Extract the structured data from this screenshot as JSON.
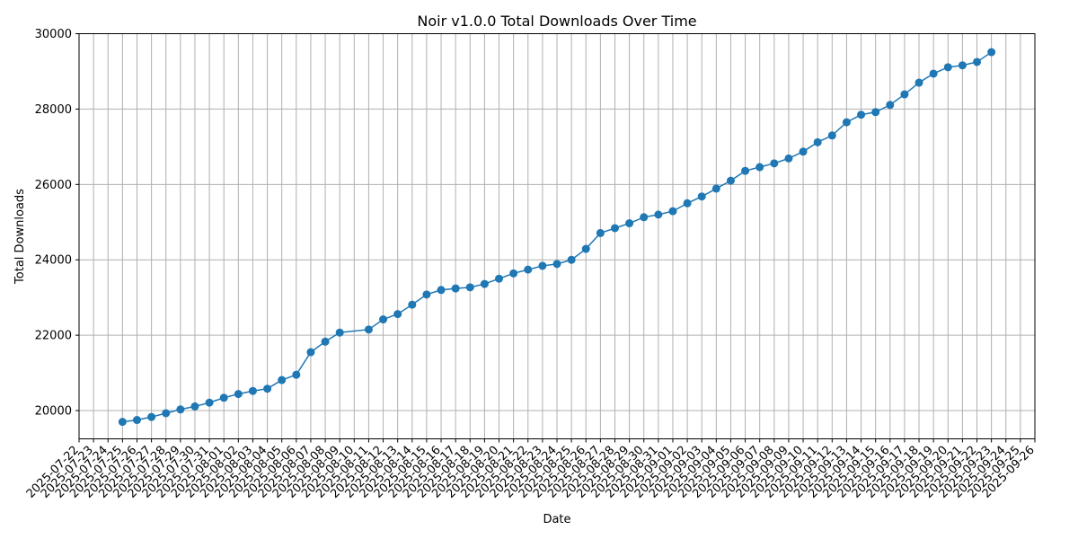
{
  "chart_data": {
    "type": "line",
    "title": "Noir v1.0.0 Total Downloads Over Time",
    "xlabel": "Date",
    "ylabel": "Total Downloads",
    "ylim": [
      19250,
      30000
    ],
    "yticks": [
      20000,
      22000,
      24000,
      26000,
      28000,
      30000
    ],
    "xlim": [
      "2025-07-22",
      "2025-09-26"
    ],
    "grid": true,
    "series": [
      {
        "color": "#1f77b4",
        "points": [
          [
            "2025-07-25",
            19700
          ],
          [
            "2025-07-26",
            19750
          ],
          [
            "2025-07-27",
            19830
          ],
          [
            "2025-07-28",
            19930
          ],
          [
            "2025-07-29",
            20030
          ],
          [
            "2025-07-30",
            20110
          ],
          [
            "2025-07-31",
            20210
          ],
          [
            "2025-08-01",
            20340
          ],
          [
            "2025-08-02",
            20440
          ],
          [
            "2025-08-03",
            20520
          ],
          [
            "2025-08-04",
            20580
          ],
          [
            "2025-08-05",
            20810
          ],
          [
            "2025-08-06",
            20950
          ],
          [
            "2025-08-07",
            21550
          ],
          [
            "2025-08-08",
            21830
          ],
          [
            "2025-08-09",
            22070
          ],
          [
            "2025-08-11",
            22150
          ],
          [
            "2025-08-12",
            22420
          ],
          [
            "2025-08-13",
            22560
          ],
          [
            "2025-08-14",
            22810
          ],
          [
            "2025-08-15",
            23080
          ],
          [
            "2025-08-16",
            23200
          ],
          [
            "2025-08-17",
            23240
          ],
          [
            "2025-08-18",
            23270
          ],
          [
            "2025-08-19",
            23360
          ],
          [
            "2025-08-20",
            23500
          ],
          [
            "2025-08-21",
            23640
          ],
          [
            "2025-08-22",
            23740
          ],
          [
            "2025-08-23",
            23840
          ],
          [
            "2025-08-24",
            23890
          ],
          [
            "2025-08-25",
            24000
          ],
          [
            "2025-08-26",
            24290
          ],
          [
            "2025-08-27",
            24710
          ],
          [
            "2025-08-28",
            24840
          ],
          [
            "2025-08-29",
            24970
          ],
          [
            "2025-08-30",
            25130
          ],
          [
            "2025-08-31",
            25200
          ],
          [
            "2025-09-01",
            25290
          ],
          [
            "2025-09-02",
            25500
          ],
          [
            "2025-09-03",
            25680
          ],
          [
            "2025-09-04",
            25890
          ],
          [
            "2025-09-05",
            26100
          ],
          [
            "2025-09-06",
            26360
          ],
          [
            "2025-09-07",
            26460
          ],
          [
            "2025-09-08",
            26560
          ],
          [
            "2025-09-09",
            26690
          ],
          [
            "2025-09-10",
            26870
          ],
          [
            "2025-09-11",
            27120
          ],
          [
            "2025-09-12",
            27300
          ],
          [
            "2025-09-13",
            27650
          ],
          [
            "2025-09-14",
            27850
          ],
          [
            "2025-09-15",
            27920
          ],
          [
            "2025-09-16",
            28110
          ],
          [
            "2025-09-17",
            28390
          ],
          [
            "2025-09-18",
            28700
          ],
          [
            "2025-09-19",
            28940
          ],
          [
            "2025-09-20",
            29110
          ],
          [
            "2025-09-21",
            29160
          ],
          [
            "2025-09-22",
            29250
          ],
          [
            "2025-09-23",
            29510
          ]
        ]
      }
    ]
  }
}
